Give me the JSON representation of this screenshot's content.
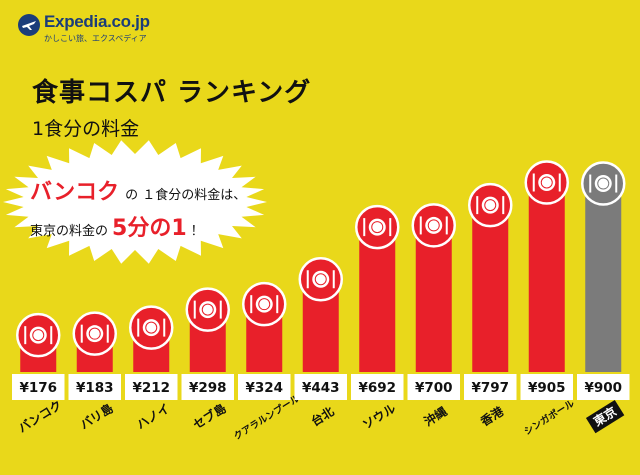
{
  "brand": {
    "name": "Expedia.co.jp",
    "tagline": "かしこい旅、エクスペディア"
  },
  "title": "食事コスパ ランキング",
  "subtitle": "1食分の料金",
  "callout": {
    "highlight_city": "バンコク",
    "line1_rest": "の １食分の料金は、",
    "line2_prefix": "東京の料金の",
    "line2_highlight": "5分の1",
    "line2_suffix": "！"
  },
  "colors": {
    "background": "#e9d81a",
    "bar": "#e8202a",
    "reference_bar": "#7b7b7b",
    "accent_text": "#e8202a"
  },
  "chart_data": {
    "type": "bar",
    "title": "食事コスパ ランキング",
    "subtitle": "1食分の料金",
    "xlabel": "",
    "ylabel": "",
    "unit": "¥",
    "categories": [
      "バンコク",
      "バリ島",
      "ハノイ",
      "セブ島",
      "クアラルンプール",
      "台北",
      "ソウル",
      "沖縄",
      "香港",
      "シンガポール",
      "東京"
    ],
    "values": [
      176,
      183,
      212,
      298,
      324,
      443,
      692,
      700,
      797,
      905,
      900
    ],
    "value_labels": [
      "¥176",
      "¥183",
      "¥212",
      "¥298",
      "¥324",
      "¥443",
      "¥692",
      "¥700",
      "¥797",
      "¥905",
      "¥900"
    ],
    "reference_category": "東京",
    "grid": false,
    "legend": "none"
  }
}
